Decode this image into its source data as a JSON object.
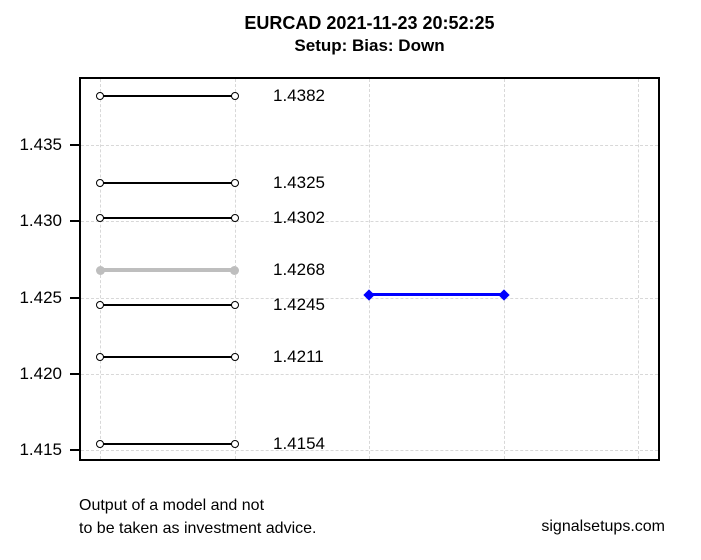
{
  "header": {
    "title": "EURCAD 2021-11-23 20:52:25",
    "subtitle": "Setup: Bias: Down"
  },
  "footer": {
    "disclaimer_line1": "Output of a model and not",
    "disclaimer_line2": "to be taken as investment advice.",
    "website": "signalsetups.com"
  },
  "colors": {
    "level_line": "#000000",
    "key_level_line": "#bebebe",
    "signal_line": "#0000ff",
    "grid_line": "#d8d8d8",
    "axis": "#000000",
    "text": "#000000",
    "background": "#ffffff"
  },
  "chart_data": {
    "type": "line",
    "title": "EURCAD 2021-11-23 20:52:25",
    "subtitle": "Setup: Bias: Down",
    "symbol": "EURCAD",
    "timestamp": "2021-11-23 20:52:25",
    "bias": "Down",
    "ylim": [
      1.4144,
      1.4393
    ],
    "yticks": [
      {
        "value": 1.415,
        "label": "1.415"
      },
      {
        "value": 1.42,
        "label": "1.420"
      },
      {
        "value": 1.425,
        "label": "1.425"
      },
      {
        "value": 1.43,
        "label": "1.430"
      },
      {
        "value": 1.435,
        "label": "1.435"
      }
    ],
    "grid": true,
    "legend_position": "none",
    "xlabel": "",
    "ylabel": "",
    "levels": [
      {
        "price": 1.4382,
        "label": "1.4382",
        "color": "black",
        "emphasis": "medium"
      },
      {
        "price": 1.4325,
        "label": "1.4325",
        "color": "black",
        "emphasis": "normal"
      },
      {
        "price": 1.4302,
        "label": "1.4302",
        "color": "black",
        "emphasis": "normal"
      },
      {
        "price": 1.4268,
        "label": "1.4268",
        "color": "gray",
        "emphasis": "thick"
      },
      {
        "price": 1.4245,
        "label": "1.4245",
        "color": "black",
        "emphasis": "normal"
      },
      {
        "price": 1.4211,
        "label": "1.4211",
        "color": "black",
        "emphasis": "normal"
      },
      {
        "price": 1.4154,
        "label": "1.4154",
        "color": "black",
        "emphasis": "normal"
      }
    ],
    "signal": {
      "price": 1.4252,
      "color": "blue",
      "x_span_frac": [
        0.5,
        0.733
      ]
    },
    "levels_x_span_frac": [
      0.033,
      0.266
    ]
  }
}
